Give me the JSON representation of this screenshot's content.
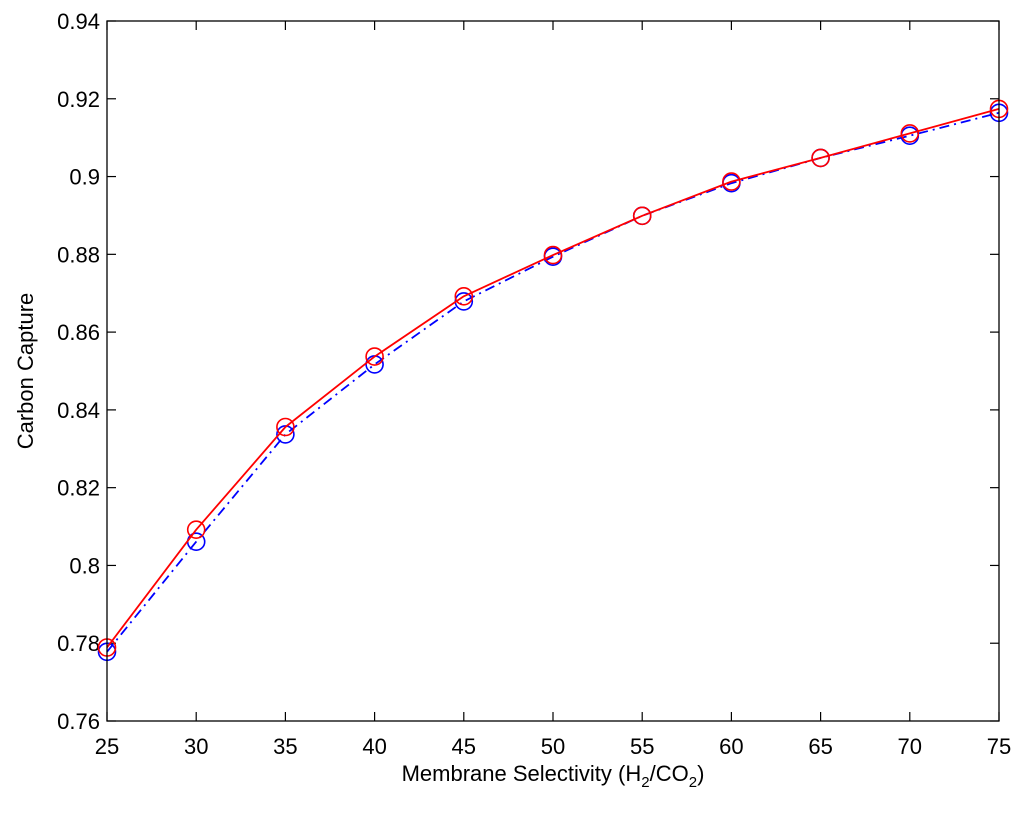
{
  "chart_data": {
    "type": "line",
    "xlabel": {
      "prefix": "Membrane Selectivity (H",
      "sub1": "2",
      "mid": "/CO",
      "sub2": "2",
      "suffix": ")"
    },
    "ylabel": "Carbon Capture",
    "xlim": [
      25,
      75
    ],
    "ylim": [
      0.76,
      0.94
    ],
    "x_ticks": [
      25,
      30,
      35,
      40,
      45,
      50,
      55,
      60,
      65,
      70,
      75
    ],
    "x_tick_labels": [
      "25",
      "30",
      "35",
      "40",
      "45",
      "50",
      "55",
      "60",
      "65",
      "70",
      "75"
    ],
    "y_ticks": [
      0.76,
      0.78,
      0.8,
      0.82,
      0.84,
      0.86,
      0.88,
      0.9,
      0.92,
      0.94
    ],
    "y_tick_labels": [
      "0.76",
      "0.78",
      "0.8",
      "0.82",
      "0.84",
      "0.86",
      "0.88",
      "0.9",
      "0.92",
      "0.94"
    ],
    "grid": false,
    "legend": false,
    "series": [
      {
        "color": "#0000ff",
        "line_style": "dash-dot",
        "marker": "circle",
        "x": [
          25,
          30,
          35,
          40,
          45,
          50,
          55,
          60,
          65,
          70,
          75
        ],
        "y": [
          0.7778,
          0.8061,
          0.8337,
          0.8517,
          0.8679,
          0.8794,
          0.8899,
          0.8983,
          0.9048,
          0.9105,
          0.9164
        ]
      },
      {
        "color": "#ff0000",
        "line_style": "solid",
        "marker": "circle",
        "x": [
          25,
          30,
          35,
          40,
          45,
          50,
          55,
          60,
          65,
          70,
          75
        ],
        "y": [
          0.7789,
          0.8092,
          0.8356,
          0.8537,
          0.8692,
          0.8798,
          0.8899,
          0.8987,
          0.9048,
          0.9111,
          0.9174
        ]
      }
    ]
  }
}
